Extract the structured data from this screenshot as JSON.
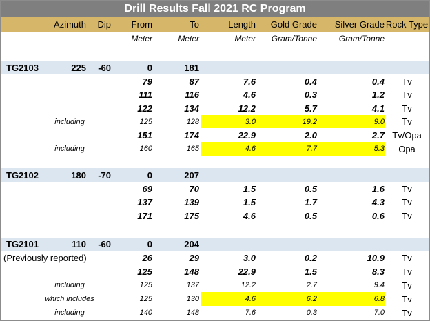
{
  "title": "Drill Results Fall 2021 RC Program",
  "headers": [
    "Azimuth",
    "Dip",
    "From",
    "To",
    "Length",
    "Gold Grade",
    "Silver Grade",
    "Rock Type"
  ],
  "units": [
    "Meter",
    "Meter",
    "Meter",
    "Gram/Tonne",
    "Gram/Tonne"
  ],
  "colors": {
    "title_bg": "#7f7f7f",
    "header_bg": "#d6b76a",
    "hole_bg": "#dce6f1",
    "highlight": "#ffff00"
  },
  "rows": [
    {
      "kind": "hole",
      "label": "TG2103",
      "azimuth": "225",
      "dip": "-60",
      "from": "0",
      "to": "181",
      "length": "",
      "gold": "",
      "silver": "",
      "rock": ""
    },
    {
      "kind": "main",
      "label": "",
      "from": "79",
      "to": "87",
      "length": "7.6",
      "gold": "0.4",
      "silver": "0.4",
      "rock": "Tv"
    },
    {
      "kind": "main",
      "label": "",
      "from": "111",
      "to": "116",
      "length": "4.6",
      "gold": "0.3",
      "silver": "1.2",
      "rock": "Tv"
    },
    {
      "kind": "main",
      "label": "",
      "from": "122",
      "to": "134",
      "length": "12.2",
      "gold": "5.7",
      "silver": "4.1",
      "rock": "Tv"
    },
    {
      "kind": "sub",
      "label": "including",
      "from": "125",
      "to": "128",
      "length": "3.0",
      "gold": "19.2",
      "silver": "9.0",
      "rock": "Tv",
      "highlight": true
    },
    {
      "kind": "main",
      "label": "",
      "from": "151",
      "to": "174",
      "length": "22.9",
      "gold": "2.0",
      "silver": "2.7",
      "rock": "Tv/Opa"
    },
    {
      "kind": "sub",
      "label": "including",
      "from": "160",
      "to": "165",
      "length": "4.6",
      "gold": "7.7",
      "silver": "5.3",
      "rock": "Opa",
      "highlight": true
    },
    {
      "kind": "hole",
      "label": "TG2102",
      "azimuth": "180",
      "dip": "-70",
      "from": "0",
      "to": "207",
      "length": "",
      "gold": "",
      "silver": "",
      "rock": ""
    },
    {
      "kind": "main",
      "label": "",
      "from": "69",
      "to": "70",
      "length": "1.5",
      "gold": "0.5",
      "silver": "1.6",
      "rock": "Tv"
    },
    {
      "kind": "main",
      "label": "",
      "from": "137",
      "to": "139",
      "length": "1.5",
      "gold": "1.7",
      "silver": "4.3",
      "rock": "Tv"
    },
    {
      "kind": "main",
      "label": "",
      "from": "171",
      "to": "175",
      "length": "4.6",
      "gold": "0.5",
      "silver": "0.6",
      "rock": "Tv"
    },
    {
      "kind": "hole",
      "label": "TG2101",
      "azimuth": "110",
      "dip": "-60",
      "from": "0",
      "to": "204",
      "length": "",
      "gold": "",
      "silver": "",
      "rock": ""
    },
    {
      "kind": "main",
      "label": "(Previously reported)",
      "from": "26",
      "to": "29",
      "length": "3.0",
      "gold": "0.2",
      "silver": "10.9",
      "rock": "Tv"
    },
    {
      "kind": "main",
      "label": "",
      "from": "125",
      "to": "148",
      "length": "22.9",
      "gold": "1.5",
      "silver": "8.3",
      "rock": "Tv"
    },
    {
      "kind": "sub",
      "label": "including",
      "from": "125",
      "to": "137",
      "length": "12.2",
      "gold": "2.7",
      "silver": "9.4",
      "rock": "Tv"
    },
    {
      "kind": "sub",
      "label": "which includes",
      "from": "125",
      "to": "130",
      "length": "4.6",
      "gold": "6.2",
      "silver": "6.8",
      "rock": "Tv",
      "highlight": true
    },
    {
      "kind": "sub",
      "label": "including",
      "from": "140",
      "to": "148",
      "length": "7.6",
      "gold": "0.3",
      "silver": "7.0",
      "rock": "Tv"
    }
  ]
}
